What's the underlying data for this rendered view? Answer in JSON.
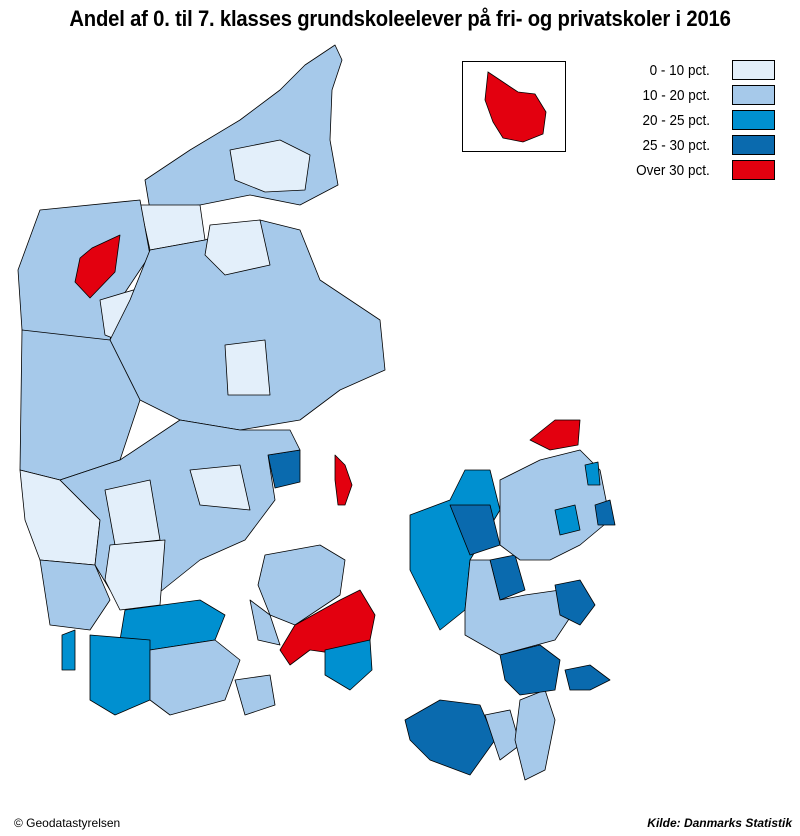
{
  "title": "Andel af 0. til 7. klasses grundskoleelever på fri- og privatskoler i 2016",
  "legend": [
    {
      "label": "0 - 10 pct.",
      "color": "#e3effa"
    },
    {
      "label": "10 - 20 pct.",
      "color": "#a6c9ea"
    },
    {
      "label": "20 - 25 pct.",
      "color": "#0090d0"
    },
    {
      "label": "25 - 30 pct.",
      "color": "#0a6aae"
    },
    {
      "label": "Over 30 pct.",
      "color": "#e3000f"
    }
  ],
  "footer": {
    "copyright": "© Geodatastyrelsen",
    "source": "Kilde: Danmarks Statistik"
  }
}
